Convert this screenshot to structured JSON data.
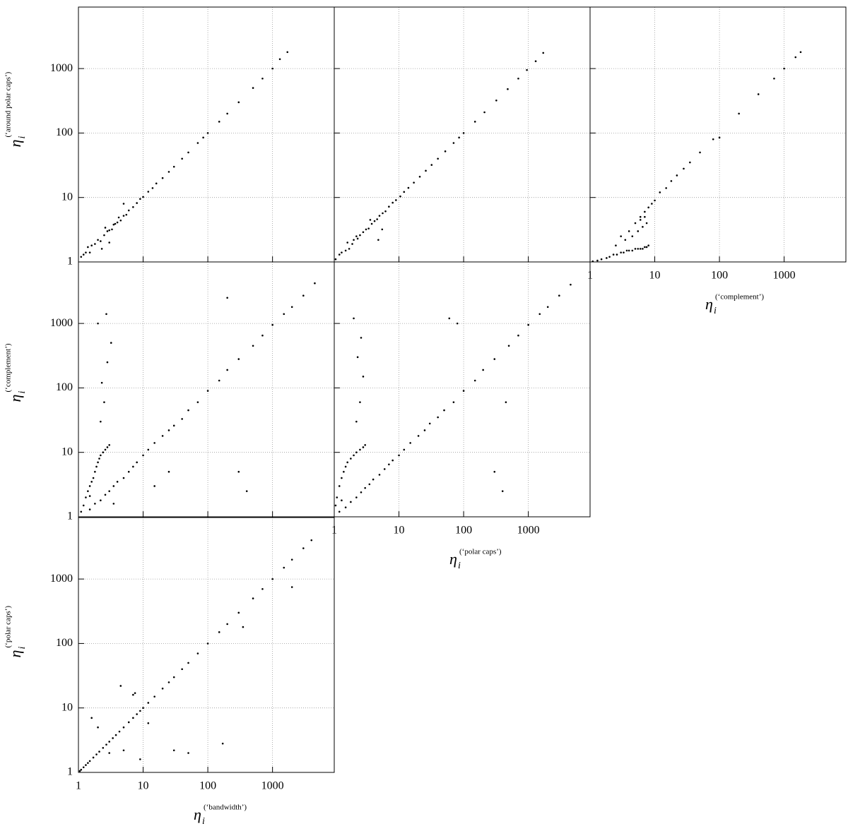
{
  "chart_data": [
    {
      "type": "scatter",
      "xscale": "log",
      "yscale": "log",
      "grid": true,
      "color": "#000000",
      "xlim": [
        1,
        9000
      ],
      "ylim": [
        1,
        9000
      ],
      "xticks": [
        1,
        10,
        100,
        1000
      ],
      "yticks": [
        1,
        10,
        100,
        1000
      ],
      "ylabel": {
        "symbol": "η",
        "subscript": "i",
        "superscript": "(‘around polar caps’)"
      },
      "x": [
        1.1,
        1.2,
        1.3,
        1.5,
        1.6,
        1.8,
        2,
        2.2,
        2.5,
        2.8,
        3,
        3.3,
        3.7,
        4,
        4.5,
        5,
        5.5,
        6,
        7,
        8,
        9,
        10,
        12,
        14,
        16,
        20,
        25,
        30,
        40,
        50,
        70,
        85,
        100,
        150,
        200,
        300,
        500,
        700,
        1000,
        1300,
        1700,
        2.3,
        5,
        3,
        1.4,
        2.6,
        3.5,
        4.2
      ],
      "y": [
        1.2,
        1.3,
        1.4,
        1.4,
        1.8,
        1.9,
        2.2,
        2.1,
        2.6,
        3,
        3.1,
        3.2,
        3.9,
        4.1,
        4.4,
        5.2,
        5.4,
        6.3,
        7.1,
        8.2,
        9.5,
        10.2,
        12.3,
        14,
        16.5,
        20,
        25,
        30,
        40,
        50,
        70,
        85,
        100,
        150,
        200,
        300,
        500,
        700,
        1000,
        1400,
        1800,
        1.6,
        8,
        2,
        1.7,
        3.4,
        3.8,
        4.9
      ]
    },
    {
      "type": "scatter",
      "xscale": "log",
      "yscale": "log",
      "grid": true,
      "color": "#000000",
      "xlim": [
        1,
        9000
      ],
      "ylim": [
        1,
        9000
      ],
      "xticks": [
        1,
        10,
        100,
        1000
      ],
      "yticks": [
        1,
        10,
        100,
        1000
      ],
      "x": [
        1.05,
        1.2,
        1.3,
        1.5,
        1.7,
        1.9,
        2,
        2.3,
        2.5,
        2.8,
        3.1,
        3.4,
        3.8,
        4.2,
        4.6,
        5,
        5.6,
        6.2,
        7,
        8,
        9,
        10.5,
        12,
        14,
        17,
        21,
        26,
        32,
        40,
        52,
        70,
        85,
        100,
        150,
        210,
        320,
        480,
        700,
        950,
        1300,
        1700,
        4.8,
        3.6,
        2.2,
        1.6,
        5.5
      ],
      "y": [
        1.1,
        1.3,
        1.4,
        1.5,
        1.6,
        1.9,
        2.2,
        2.3,
        2.6,
        2.9,
        3.2,
        3.3,
        3.9,
        4.3,
        4.6,
        5.2,
        5.7,
        6.1,
        7.2,
        8.3,
        9.1,
        10.4,
        12.2,
        14.1,
        17,
        21,
        26,
        32,
        40,
        52,
        70,
        85,
        100,
        150,
        210,
        320,
        480,
        700,
        950,
        1300,
        1750,
        2.2,
        4.5,
        2.5,
        2,
        3.2
      ]
    },
    {
      "type": "scatter",
      "xscale": "log",
      "yscale": "log",
      "grid": true,
      "color": "#000000",
      "xlim": [
        1,
        9000
      ],
      "ylim": [
        1,
        9000
      ],
      "xticks": [
        1,
        10,
        100,
        1000
      ],
      "yticks": [
        1,
        10,
        100,
        1000
      ],
      "xlabel": {
        "symbol": "η",
        "subscript": "i",
        "superscript": "(‘complement’)"
      },
      "x": [
        1.1,
        1.3,
        1.5,
        1.8,
        2,
        2.3,
        2.6,
        3,
        3.3,
        3.7,
        4,
        4.5,
        5,
        5.5,
        6,
        6.5,
        7,
        7.5,
        8,
        2.5,
        3.5,
        4.5,
        5.5,
        6.5,
        7.5,
        5,
        6,
        7,
        8,
        3,
        4,
        6,
        7,
        9,
        10,
        12,
        15,
        18,
        22,
        28,
        35,
        50,
        80,
        100,
        200,
        400,
        700,
        1000,
        1500,
        1800
      ],
      "y": [
        1.02,
        1.05,
        1.1,
        1.15,
        1.2,
        1.3,
        1.3,
        1.4,
        1.4,
        1.5,
        1.5,
        1.5,
        1.6,
        1.6,
        1.6,
        1.6,
        1.7,
        1.7,
        1.8,
        1.8,
        2.2,
        2.5,
        3,
        3.5,
        4,
        4,
        5,
        6,
        7,
        2.5,
        3,
        4.5,
        5,
        8,
        9,
        12,
        14,
        18,
        22,
        28,
        35,
        50,
        80,
        85,
        200,
        400,
        700,
        1000,
        1500,
        1800
      ]
    },
    {
      "type": "scatter",
      "xscale": "log",
      "yscale": "log",
      "grid": true,
      "color": "#000000",
      "xlim": [
        1,
        9000
      ],
      "ylim": [
        1,
        9000
      ],
      "xticks": [
        1,
        10,
        100,
        1000
      ],
      "yticks": [
        1,
        10,
        100,
        1000
      ],
      "ylabel": {
        "symbol": "η",
        "subscript": "i",
        "superscript": "(‘complement’)"
      },
      "x": [
        1.1,
        1.2,
        1.3,
        1.4,
        1.5,
        1.6,
        1.7,
        1.8,
        1.9,
        2,
        2.1,
        2.2,
        2.4,
        2.6,
        2.8,
        3,
        1.5,
        1.8,
        2.2,
        2.6,
        3,
        3.5,
        4,
        5,
        6,
        7,
        8,
        10,
        12,
        15,
        20,
        25,
        30,
        40,
        50,
        70,
        100,
        150,
        200,
        300,
        500,
        700,
        1000,
        1500,
        2000,
        3000,
        4500,
        2.2,
        2.5,
        2.3,
        2.8,
        3.2,
        2,
        2.7,
        300,
        400,
        200,
        15,
        25,
        1.5,
        3.5
      ],
      "y": [
        1.2,
        1.5,
        2,
        2.5,
        3,
        3.5,
        4,
        5,
        6,
        7,
        8,
        9,
        10,
        11,
        12,
        13,
        1.3,
        1.6,
        1.8,
        2.2,
        2.5,
        3,
        3.5,
        4,
        5,
        6,
        7,
        9,
        11,
        14,
        18,
        22,
        26,
        33,
        45,
        60,
        90,
        130,
        190,
        280,
        450,
        650,
        950,
        1400,
        1800,
        2700,
        4200,
        30,
        60,
        120,
        250,
        500,
        1000,
        1400,
        5,
        2.5,
        2500,
        3,
        5,
        2.1,
        1.6
      ]
    },
    {
      "type": "scatter",
      "xscale": "log",
      "yscale": "log",
      "grid": true,
      "color": "#000000",
      "xlim": [
        1,
        9000
      ],
      "ylim": [
        1,
        9000
      ],
      "xticks": [
        1,
        10,
        100,
        1000
      ],
      "yticks": [
        1,
        10,
        100,
        1000
      ],
      "xlabel": {
        "symbol": "η",
        "subscript": "i",
        "superscript": "(‘polar caps’)"
      },
      "x": [
        1.05,
        1.1,
        1.2,
        1.3,
        1.4,
        1.5,
        1.6,
        1.8,
        2,
        2.2,
        2.5,
        2.8,
        3,
        1.2,
        1.5,
        1.8,
        2.2,
        2.6,
        3,
        3.5,
        4,
        5,
        6,
        7,
        8,
        10,
        12,
        15,
        20,
        25,
        30,
        40,
        50,
        70,
        100,
        150,
        200,
        300,
        500,
        700,
        1000,
        1500,
        2000,
        3000,
        4500,
        2.2,
        2.5,
        2.8,
        2.3,
        2.6,
        2,
        400,
        300,
        450,
        60,
        80,
        1.3
      ],
      "y": [
        1.5,
        2,
        3,
        4,
        5,
        6,
        7,
        8,
        9,
        10,
        11,
        12,
        13,
        1.2,
        1.4,
        1.7,
        2,
        2.4,
        2.8,
        3.2,
        3.8,
        4.5,
        5.5,
        6.5,
        7.5,
        9,
        11,
        14,
        18,
        22,
        28,
        35,
        45,
        60,
        90,
        130,
        190,
        280,
        450,
        650,
        950,
        1400,
        1800,
        2700,
        4000,
        30,
        60,
        150,
        300,
        600,
        1200,
        2.5,
        5,
        60,
        1200,
        1000,
        1.8
      ]
    },
    {
      "type": "scatter",
      "xscale": "log",
      "yscale": "log",
      "grid": true,
      "color": "#000000",
      "xlim": [
        1,
        9000
      ],
      "ylim": [
        1,
        9000
      ],
      "xticks": [
        1,
        10,
        100,
        1000
      ],
      "yticks": [
        1,
        10,
        100,
        1000
      ],
      "xlabel": {
        "symbol": "η",
        "subscript": "i",
        "superscript": "(‘bandwidth’)"
      },
      "ylabel": {
        "symbol": "η",
        "subscript": "i",
        "superscript": "(‘polar caps’)"
      },
      "x": [
        1.05,
        1.1,
        1.2,
        1.3,
        1.4,
        1.5,
        1.7,
        1.9,
        2.1,
        2.4,
        2.7,
        3,
        3.4,
        3.8,
        4.3,
        5,
        6,
        7,
        8,
        9,
        10,
        12,
        15,
        20,
        25,
        30,
        40,
        50,
        70,
        100,
        150,
        200,
        300,
        500,
        700,
        1000,
        1500,
        2000,
        3000,
        4000,
        1.6,
        2,
        3,
        5,
        7,
        9,
        12,
        30,
        50,
        170,
        350,
        2000,
        4.5,
        7.5
      ],
      "y": [
        1.05,
        1.1,
        1.2,
        1.3,
        1.4,
        1.5,
        1.7,
        1.9,
        2.1,
        2.4,
        2.7,
        3,
        3.4,
        3.8,
        4.3,
        5,
        6,
        7,
        8,
        9,
        10,
        12,
        15,
        20,
        25,
        30,
        40,
        50,
        70,
        100,
        150,
        200,
        300,
        500,
        700,
        1000,
        1500,
        2000,
        3000,
        4000,
        7,
        5,
        2,
        2.2,
        16,
        1.6,
        5.8,
        2.2,
        2,
        2.8,
        180,
        750,
        22,
        17
      ]
    }
  ]
}
